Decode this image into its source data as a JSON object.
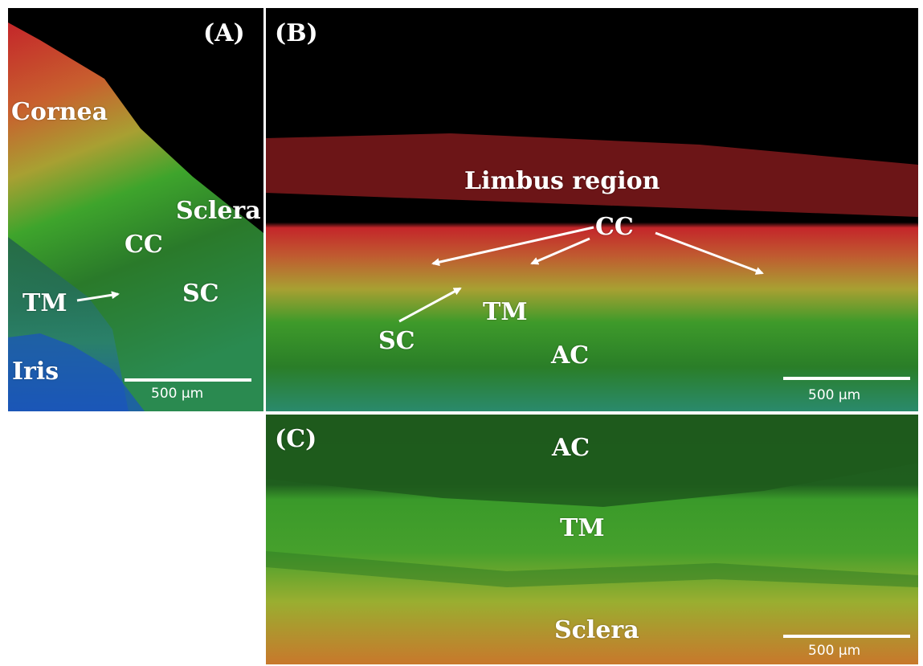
{
  "panels": {
    "a": {
      "label": "(A)",
      "annotations": {
        "cornea": "Cornea",
        "sclera": "Sclera",
        "cc": "CC",
        "tm": "TM",
        "sc": "SC",
        "iris": "Iris"
      },
      "scale": "500 µm"
    },
    "b": {
      "label": "(B)",
      "annotations": {
        "limbus": "Limbus region",
        "cc": "CC",
        "sc": "SC",
        "tm": "TM",
        "ac": "AC"
      },
      "scale": "500 µm"
    },
    "c": {
      "label": "(C)",
      "annotations": {
        "ac": "AC",
        "tm": "TM",
        "sclera": "Sclera"
      },
      "scale": "500 µm"
    }
  },
  "colors": {
    "background": "#000000",
    "red": "#c4262a",
    "orange": "#c8702e",
    "yellow": "#a8b232",
    "green": "#2f9a2a",
    "dark_green": "#1e5a1c",
    "teal": "#2a8078",
    "blue": "#1a52c0",
    "annotation": "#ffffff"
  }
}
